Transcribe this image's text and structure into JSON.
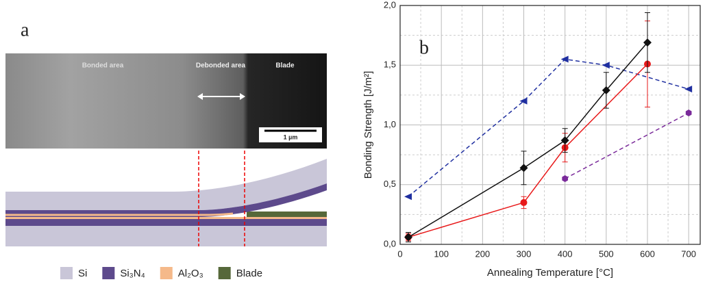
{
  "panel_a": {
    "label": "a",
    "photo": {
      "bonded": "Bonded area",
      "debonded": "Debonded area",
      "blade": "Blade",
      "scale": "1 µm"
    },
    "legend": [
      {
        "name": "Si",
        "color": "#c9c6d8"
      },
      {
        "name": "Si₃N₄",
        "color": "#5d4a8c"
      },
      {
        "name": "Al₂O₃",
        "color": "#f5b98a"
      },
      {
        "name": "Blade",
        "color": "#56683a"
      }
    ]
  },
  "chart_data": {
    "type": "line",
    "panel_label": "b",
    "x_label": "Annealing Temperature [°C]",
    "y_label": "Bonding Strength [J/m²]",
    "xlim": [
      0,
      728
    ],
    "ylim": [
      0,
      2.0
    ],
    "xticks": [
      0,
      100,
      200,
      300,
      400,
      500,
      600,
      700
    ],
    "yticks": [
      {
        "value": 0,
        "label": "0,0"
      },
      {
        "value": 0.5,
        "label": "0,5"
      },
      {
        "value": 1.0,
        "label": "1,0"
      },
      {
        "value": 1.5,
        "label": "1,5"
      },
      {
        "value": 2.0,
        "label": "2,0"
      }
    ],
    "grid": true,
    "series": [
      {
        "color": "#1f2fa0",
        "marker": "triangle-left",
        "dashed": true,
        "x": [
          20,
          300,
          400,
          500,
          700
        ],
        "values": [
          0.4,
          1.2,
          1.55,
          1.5,
          1.3
        ]
      },
      {
        "color": "#7a2a9a",
        "marker": "hexagon",
        "dashed": true,
        "x": [
          400,
          700
        ],
        "values": [
          0.55,
          1.1
        ]
      },
      {
        "color": "#e8191a",
        "marker": "circle",
        "dashed": false,
        "x": [
          20,
          300,
          400,
          600
        ],
        "values": [
          0.06,
          0.35,
          0.81,
          1.51
        ],
        "errors": [
          0.03,
          0.05,
          0.12,
          0.36
        ]
      },
      {
        "color": "#111111",
        "marker": "diamond",
        "dashed": false,
        "x": [
          20,
          300,
          400,
          500,
          600
        ],
        "values": [
          0.06,
          0.64,
          0.87,
          1.29,
          1.69
        ],
        "errors": [
          0.04,
          0.14,
          0.1,
          0.15,
          0.25
        ]
      }
    ]
  }
}
